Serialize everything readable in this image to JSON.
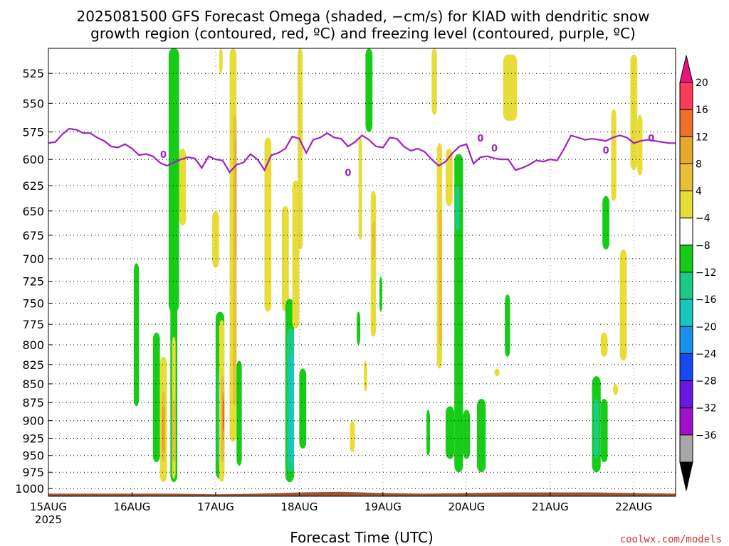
{
  "title": {
    "line1": "2025081500 GFS Forecast Omega (shaded, −cm/s) for KIAD with dendritic snow",
    "line2": "growth region (contoured, red, ºC) and freezing level (contoured, purple, ºC)"
  },
  "xlabel": "Forecast Time (UTC)",
  "credit": "coolwx.com/models",
  "chart_data": {
    "type": "heatmap",
    "title": "2025081500 GFS Forecast Omega (shaded, −cm/s) for KIAD with dendritic snow growth region (contoured, red, ºC) and freezing level (contoured, purple, ºC)",
    "xlabel": "Forecast Time (UTC)",
    "ylabel": "",
    "x_ticks": [
      "15AUG",
      "16AUG",
      "17AUG",
      "18AUG",
      "19AUG",
      "20AUG",
      "21AUG",
      "22AUG"
    ],
    "x_year": "2025",
    "xlim_hours": [
      0,
      180
    ],
    "y_ticks": [
      525,
      550,
      575,
      600,
      625,
      650,
      675,
      700,
      725,
      750,
      775,
      800,
      825,
      850,
      875,
      900,
      925,
      950,
      975,
      1000
    ],
    "ylim_hpa": [
      505,
      1012
    ],
    "y_scale": "log-pressure (inverted)",
    "grid": true,
    "colorbar": {
      "labels": [
        "20",
        "16",
        "12",
        "8",
        "4",
        "−4",
        "−8",
        "−12",
        "−16",
        "−20",
        "−24",
        "−28",
        "−32",
        "−36"
      ],
      "colors": [
        "#ff3a5a",
        "#f07028",
        "#e8a830",
        "#e8c038",
        "#e8dc38",
        "#ffffff",
        "#16cc16",
        "#18cc88",
        "#18c8c0",
        "#1890f0",
        "#1848f0",
        "#6818e0",
        "#a010c8",
        "#a8a8a8"
      ],
      "top_arrow_color": "#e8147c",
      "bottom_arrow_color": "#000000"
    },
    "freezing_level": {
      "label": "0",
      "color": "#a020c0",
      "hours": [
        0,
        2,
        4,
        6,
        8,
        10,
        12,
        14,
        16,
        18,
        20,
        22,
        24,
        26,
        28,
        30,
        32,
        34,
        36,
        38,
        40,
        42,
        44,
        46,
        48,
        50,
        52,
        54,
        56,
        58,
        60,
        62,
        64,
        66,
        68,
        70,
        72,
        74,
        76,
        78,
        80,
        82,
        84,
        86,
        88,
        90,
        92,
        94,
        96,
        98,
        100,
        102,
        104,
        106,
        108,
        110,
        112,
        114,
        116,
        118,
        120,
        122,
        124,
        126,
        128,
        130,
        132,
        134,
        136,
        138,
        140,
        142,
        144,
        146,
        148,
        150,
        152,
        154,
        156,
        158,
        160,
        162,
        164,
        166,
        168,
        170,
        172,
        174,
        176,
        178,
        180
      ],
      "pressure_hpa": [
        585,
        584,
        577,
        572,
        573,
        576,
        576,
        580,
        583,
        588,
        589,
        586,
        590,
        596,
        595,
        597,
        603,
        606,
        603,
        600,
        598,
        599,
        608,
        597,
        600,
        601,
        612,
        605,
        603,
        595,
        600,
        610,
        596,
        594,
        590,
        579,
        581,
        594,
        582,
        580,
        576,
        580,
        581,
        588,
        584,
        578,
        582,
        588,
        589,
        580,
        581,
        588,
        592,
        590,
        593,
        600,
        606,
        602,
        594,
        588,
        586,
        604,
        598,
        597,
        599,
        600,
        600,
        610,
        608,
        605,
        601,
        602,
        600,
        601,
        590,
        578,
        580,
        582,
        581,
        582,
        583,
        580,
        578,
        580,
        585,
        583,
        582,
        583,
        584,
        585,
        585
      ]
    },
    "omega_regions": [
      {
        "t": [
          34.5,
          37.5
        ],
        "p": [
          505,
          760
        ],
        "v": -8
      },
      {
        "t": [
          35.0,
          37.0
        ],
        "p": [
          720,
          990
        ],
        "v": -8
      },
      {
        "t": [
          35.5,
          36.5
        ],
        "p": [
          790,
          985
        ],
        "v": 4
      },
      {
        "t": [
          35.5,
          36.5
        ],
        "p": [
          870,
          960
        ],
        "v": 8
      },
      {
        "t": [
          24.5,
          26.0
        ],
        "p": [
          705,
          880
        ],
        "v": -8
      },
      {
        "t": [
          30.0,
          32.0
        ],
        "p": [
          785,
          960
        ],
        "v": -8
      },
      {
        "t": [
          32.0,
          34.0
        ],
        "p": [
          815,
          990
        ],
        "v": 4
      },
      {
        "t": [
          32.5,
          33.5
        ],
        "p": [
          860,
          960
        ],
        "v": 8
      },
      {
        "t": [
          32.5,
          33.5
        ],
        "p": [
          880,
          945
        ],
        "v": 12
      },
      {
        "t": [
          37.5,
          39.5
        ],
        "p": [
          590,
          665
        ],
        "v": 4
      },
      {
        "t": [
          47.0,
          49.0
        ],
        "p": [
          650,
          710
        ],
        "v": 4
      },
      {
        "t": [
          48.0,
          50.5
        ],
        "p": [
          760,
          985
        ],
        "v": -8
      },
      {
        "t": [
          48.5,
          50.0
        ],
        "p": [
          830,
          965
        ],
        "v": -12
      },
      {
        "t": [
          49.0,
          50.5
        ],
        "p": [
          770,
          990
        ],
        "v": 4
      },
      {
        "t": [
          49.5,
          50.5
        ],
        "p": [
          840,
          960
        ],
        "v": 8
      },
      {
        "t": [
          49.8,
          50.5
        ],
        "p": [
          860,
          930
        ],
        "v": 12
      },
      {
        "t": [
          50.0,
          50.5
        ],
        "p": [
          870,
          915
        ],
        "v": 16
      },
      {
        "t": [
          52.0,
          54.0
        ],
        "p": [
          505,
          930
        ],
        "v": 4
      },
      {
        "t": [
          53.0,
          54.0
        ],
        "p": [
          560,
          880
        ],
        "v": 8
      },
      {
        "t": [
          53.5,
          54.0
        ],
        "p": [
          580,
          700
        ],
        "v": 12
      },
      {
        "t": [
          54.0,
          55.5
        ],
        "p": [
          820,
          965
        ],
        "v": -8
      },
      {
        "t": [
          49.0,
          50.0
        ],
        "p": [
          505,
          525
        ],
        "v": 4
      },
      {
        "t": [
          62.0,
          64.0
        ],
        "p": [
          580,
          760
        ],
        "v": 4
      },
      {
        "t": [
          67.0,
          69.0
        ],
        "p": [
          645,
          760
        ],
        "v": 4
      },
      {
        "t": [
          68.0,
          70.5
        ],
        "p": [
          745,
          990
        ],
        "v": -8
      },
      {
        "t": [
          68.5,
          70.5
        ],
        "p": [
          780,
          975
        ],
        "v": -12
      },
      {
        "t": [
          69.0,
          70.5
        ],
        "p": [
          810,
          960
        ],
        "v": -16
      },
      {
        "t": [
          70.0,
          72.0
        ],
        "p": [
          620,
          780
        ],
        "v": 4
      },
      {
        "t": [
          72.0,
          74.0
        ],
        "p": [
          830,
          940
        ],
        "v": -8
      },
      {
        "t": [
          71.5,
          73.0
        ],
        "p": [
          505,
          690
        ],
        "v": 4
      },
      {
        "t": [
          86.5,
          88.0
        ],
        "p": [
          900,
          945
        ],
        "v": 4
      },
      {
        "t": [
          88.5,
          89.5
        ],
        "p": [
          760,
          800
        ],
        "v": -8
      },
      {
        "t": [
          89.0,
          90.0
        ],
        "p": [
          580,
          680
        ],
        "v": 4
      },
      {
        "t": [
          90.5,
          91.5
        ],
        "p": [
          820,
          860
        ],
        "v": 4
      },
      {
        "t": [
          91.0,
          93.0
        ],
        "p": [
          505,
          575
        ],
        "v": -8
      },
      {
        "t": [
          92.5,
          94.0
        ],
        "p": [
          630,
          790
        ],
        "v": 4
      },
      {
        "t": [
          93.0,
          93.8
        ],
        "p": [
          660,
          700
        ],
        "v": 8
      },
      {
        "t": [
          95.0,
          95.8
        ],
        "p": [
          720,
          760
        ],
        "v": -8
      },
      {
        "t": [
          110.0,
          111.5
        ],
        "p": [
          505,
          560
        ],
        "v": 4
      },
      {
        "t": [
          111.5,
          113.0
        ],
        "p": [
          585,
          830
        ],
        "v": 4
      },
      {
        "t": [
          112.0,
          113.0
        ],
        "p": [
          650,
          800
        ],
        "v": 8
      },
      {
        "t": [
          108.5,
          109.5
        ],
        "p": [
          885,
          950
        ],
        "v": -8
      },
      {
        "t": [
          114.0,
          116.0
        ],
        "p": [
          590,
          645
        ],
        "v": 4
      },
      {
        "t": [
          114.0,
          116.5
        ],
        "p": [
          880,
          955
        ],
        "v": -8
      },
      {
        "t": [
          116.5,
          119.0
        ],
        "p": [
          595,
          975
        ],
        "v": -8
      },
      {
        "t": [
          116.8,
          118.0
        ],
        "p": [
          625,
          670
        ],
        "v": -12
      },
      {
        "t": [
          119.0,
          121.0
        ],
        "p": [
          885,
          955
        ],
        "v": -8
      },
      {
        "t": [
          123.0,
          125.5
        ],
        "p": [
          870,
          975
        ],
        "v": -8
      },
      {
        "t": [
          128.0,
          129.5
        ],
        "p": [
          830,
          840
        ],
        "v": 4
      },
      {
        "t": [
          131.0,
          132.5
        ],
        "p": [
          740,
          815
        ],
        "v": -8
      },
      {
        "t": [
          130.5,
          134.5
        ],
        "p": [
          510,
          565
        ],
        "v": 4
      },
      {
        "t": [
          156.0,
          158.5
        ],
        "p": [
          840,
          975
        ],
        "v": -8
      },
      {
        "t": [
          156.5,
          158.0
        ],
        "p": [
          870,
          955
        ],
        "v": -12
      },
      {
        "t": [
          158.5,
          160.5
        ],
        "p": [
          785,
          815
        ],
        "v": 4
      },
      {
        "t": [
          158.5,
          160.5
        ],
        "p": [
          870,
          960
        ],
        "v": -8
      },
      {
        "t": [
          159.0,
          161.0
        ],
        "p": [
          635,
          690
        ],
        "v": -8
      },
      {
        "t": [
          161.5,
          163.0
        ],
        "p": [
          555,
          640
        ],
        "v": 4
      },
      {
        "t": [
          162.0,
          163.5
        ],
        "p": [
          850,
          865
        ],
        "v": 4
      },
      {
        "t": [
          164.0,
          166.0
        ],
        "p": [
          690,
          820
        ],
        "v": 4
      },
      {
        "t": [
          167.0,
          169.0
        ],
        "p": [
          510,
          610
        ],
        "v": 4
      },
      {
        "t": [
          169.0,
          170.5
        ],
        "p": [
          560,
          615
        ],
        "v": 4
      }
    ],
    "ground_profile": {
      "color": "#a0522d",
      "hours": [
        0,
        20,
        36,
        48,
        60,
        72,
        84,
        96,
        108,
        120,
        132,
        144,
        156,
        168,
        180
      ],
      "pressure_hpa": [
        1008,
        1008,
        1008,
        1009,
        1008,
        1006,
        1005,
        1007,
        1008,
        1007,
        1006,
        1006,
        1006,
        1007,
        1008
      ]
    }
  }
}
